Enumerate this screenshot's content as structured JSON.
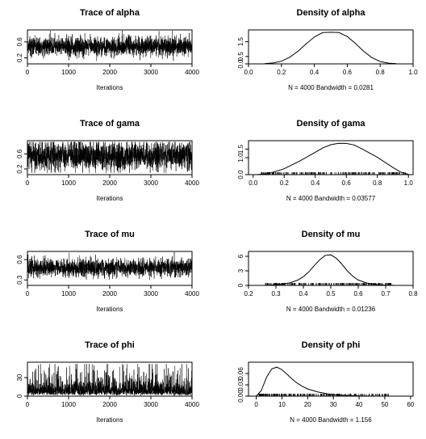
{
  "chart_data": [
    {
      "type": "line",
      "title": "Trace of alpha",
      "xlabel": "Iterations",
      "xlim": [
        0,
        4000
      ],
      "ylim": [
        0.05,
        0.9
      ],
      "xticks": [
        "0",
        "1000",
        "2000",
        "3000",
        "4000"
      ],
      "yticks": [
        "0.2",
        "0.6"
      ],
      "yticks_values": [
        0.2,
        0.6
      ],
      "xticks_values": [
        0,
        1000,
        2000,
        3000,
        4000
      ],
      "series": [
        {
          "n": 4000,
          "mean": 0.49,
          "sd": 0.12,
          "min": 0.12,
          "max": 0.88,
          "values": [
            0.5,
            0.46,
            0.53,
            0.49,
            0.51,
            0.47,
            0.52,
            0.48,
            0.5,
            0.49
          ]
        }
      ]
    },
    {
      "type": "line",
      "title": "Density of alpha",
      "xlabel": "N = 4000   Bandwidth = 0.0281",
      "xlim": [
        0.0,
        1.0
      ],
      "ylim": [
        0,
        2.3
      ],
      "xticks": [
        "0.0",
        "0.2",
        "0.4",
        "0.6",
        "0.8",
        "1.0"
      ],
      "xticks_values": [
        0.0,
        0.2,
        0.4,
        0.6,
        0.8,
        1.0
      ],
      "yticks": [
        "0.0",
        "0.5",
        "1.5"
      ],
      "yticks_values": [
        0.0,
        0.5,
        1.5
      ],
      "series": [
        {
          "x": [
            0.1,
            0.15,
            0.2,
            0.25,
            0.3,
            0.35,
            0.4,
            0.45,
            0.5,
            0.55,
            0.6,
            0.65,
            0.7,
            0.75,
            0.8,
            0.85,
            0.9
          ],
          "values": [
            0.02,
            0.06,
            0.18,
            0.45,
            0.85,
            1.35,
            1.82,
            2.12,
            2.14,
            2.12,
            1.85,
            1.38,
            0.85,
            0.42,
            0.16,
            0.05,
            0.01
          ]
        }
      ]
    },
    {
      "type": "line",
      "title": "Trace of gama",
      "xlabel": "Iterations",
      "xlim": [
        0,
        4000
      ],
      "ylim": [
        0.05,
        0.95
      ],
      "xticks": [
        "0",
        "1000",
        "2000",
        "3000",
        "4000"
      ],
      "xticks_values": [
        0,
        1000,
        2000,
        3000,
        4000
      ],
      "yticks": [
        "0.2",
        "0.6"
      ],
      "yticks_values": [
        0.2,
        0.6
      ],
      "series": [
        {
          "n": 4000,
          "mean": 0.55,
          "sd": 0.19,
          "min": 0.1,
          "max": 0.92,
          "values": [
            0.58,
            0.52,
            0.61,
            0.49,
            0.56,
            0.62,
            0.51,
            0.57,
            0.54,
            0.6
          ]
        }
      ]
    },
    {
      "type": "line",
      "title": "Density of gama",
      "xlabel": "N = 4000   Bandwidth = 0.03577",
      "xlim": [
        -0.03,
        1.03
      ],
      "ylim": [
        0,
        2.0
      ],
      "xticks": [
        "0.0",
        "0.2",
        "0.4",
        "0.6",
        "0.8",
        "1.0"
      ],
      "xticks_values": [
        0.0,
        0.2,
        0.4,
        0.6,
        0.8,
        1.0
      ],
      "yticks": [
        "0.0",
        "1.0",
        "1.5"
      ],
      "yticks_values": [
        0.0,
        1.0,
        1.5
      ],
      "rug": {
        "from": 0.05,
        "to": 0.98
      },
      "series": [
        {
          "x": [
            0.02,
            0.1,
            0.2,
            0.3,
            0.4,
            0.45,
            0.5,
            0.55,
            0.6,
            0.65,
            0.7,
            0.8,
            0.9,
            0.95,
            1.0
          ],
          "values": [
            0.0,
            0.06,
            0.35,
            0.8,
            1.32,
            1.58,
            1.76,
            1.85,
            1.84,
            1.75,
            1.52,
            1.02,
            0.42,
            0.15,
            0.02
          ]
        }
      ]
    },
    {
      "type": "line",
      "title": "Trace of mu",
      "xlabel": "Iterations",
      "xlim": [
        0,
        4000
      ],
      "ylim": [
        0.22,
        0.72
      ],
      "xticks": [
        "0",
        "1000",
        "2000",
        "3000",
        "4000"
      ],
      "xticks_values": [
        0,
        1000,
        2000,
        3000,
        4000
      ],
      "yticks": [
        "0.3",
        "0.6"
      ],
      "yticks_values": [
        0.3,
        0.6
      ],
      "series": [
        {
          "n": 4000,
          "mean": 0.48,
          "sd": 0.065,
          "min": 0.27,
          "max": 0.71,
          "values": [
            0.48,
            0.46,
            0.51,
            0.47,
            0.49,
            0.45,
            0.5,
            0.48,
            0.47,
            0.49
          ]
        }
      ]
    },
    {
      "type": "line",
      "title": "Density of mu",
      "xlabel": "N = 4000   Bandwidth = 0.01236",
      "xlim": [
        0.2,
        0.8
      ],
      "ylim": [
        0,
        7
      ],
      "xticks": [
        "0.2",
        "0.3",
        "0.4",
        "0.5",
        "0.6",
        "0.7",
        "0.8"
      ],
      "xticks_values": [
        0.2,
        0.3,
        0.4,
        0.5,
        0.6,
        0.7,
        0.8
      ],
      "yticks": [
        "0",
        "3",
        "6"
      ],
      "yticks_values": [
        0,
        3,
        6
      ],
      "rug": {
        "from": 0.26,
        "to": 0.72
      },
      "series": [
        {
          "x": [
            0.26,
            0.3,
            0.35,
            0.38,
            0.4,
            0.42,
            0.44,
            0.46,
            0.48,
            0.5,
            0.52,
            0.54,
            0.56,
            0.58,
            0.6,
            0.63,
            0.66,
            0.7,
            0.73
          ],
          "values": [
            0.02,
            0.1,
            0.5,
            1.1,
            1.8,
            2.8,
            4.1,
            5.3,
            6.2,
            6.3,
            5.6,
            4.4,
            3.0,
            1.9,
            1.1,
            0.5,
            0.18,
            0.05,
            0.01
          ]
        }
      ]
    },
    {
      "type": "line",
      "title": "Trace of phi",
      "xlabel": "Iterations",
      "xlim": [
        0,
        4000
      ],
      "ylim": [
        0,
        55
      ],
      "xticks": [
        "0",
        "1000",
        "2000",
        "3000",
        "4000"
      ],
      "xticks_values": [
        0,
        1000,
        2000,
        3000,
        4000
      ],
      "yticks": [
        "0",
        "30"
      ],
      "yticks_values": [
        0,
        30
      ],
      "series": [
        {
          "n": 4000,
          "median": 9,
          "min": 1,
          "max": 52,
          "values": [
            9,
            6,
            14,
            8,
            11,
            7,
            18,
            10,
            5,
            12
          ]
        }
      ]
    },
    {
      "type": "line",
      "title": "Density of phi",
      "xlabel": "N = 4000   Bandwidth = 1.156",
      "xlim": [
        -3,
        61
      ],
      "ylim": [
        0,
        0.09
      ],
      "xticks": [
        "0",
        "10",
        "20",
        "30",
        "40",
        "50",
        "60"
      ],
      "xticks_values": [
        0,
        10,
        20,
        30,
        40,
        50,
        60
      ],
      "yticks": [
        "0.00",
        "0.03",
        "0.06"
      ],
      "yticks_values": [
        0.0,
        0.03,
        0.06
      ],
      "rug": {
        "from": 1,
        "to": 52
      },
      "series": [
        {
          "x": [
            0,
            2,
            4,
            6,
            8,
            10,
            12,
            14,
            16,
            18,
            20,
            24,
            28,
            32,
            36,
            40,
            45,
            50,
            55
          ],
          "values": [
            0.0,
            0.015,
            0.05,
            0.072,
            0.077,
            0.07,
            0.058,
            0.045,
            0.034,
            0.026,
            0.019,
            0.011,
            0.006,
            0.003,
            0.0015,
            0.0008,
            0.0003,
            0.0001,
            0.0
          ]
        }
      ]
    }
  ]
}
